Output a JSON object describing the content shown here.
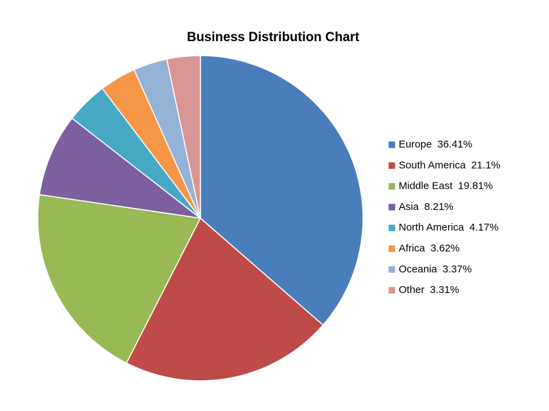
{
  "chart_data": {
    "type": "pie",
    "title": "Business Distribution Chart",
    "categories": [
      "Europe",
      "South America",
      "Middle East",
      "Asia",
      "North America",
      "Africa",
      "Oceania",
      "Other"
    ],
    "values": [
      36.41,
      21.1,
      19.81,
      8.21,
      4.17,
      3.62,
      3.37,
      3.31
    ],
    "value_labels": [
      "36.41%",
      "21.1%",
      "19.81%",
      "8.21%",
      "4.17%",
      "3.62%",
      "3.37%",
      "3.31%"
    ],
    "colors": [
      "#4a7ebb",
      "#be4b48",
      "#98b954",
      "#7d60a0",
      "#46aac5",
      "#f79646",
      "#95b3d7",
      "#d99694"
    ],
    "legend": "right"
  }
}
